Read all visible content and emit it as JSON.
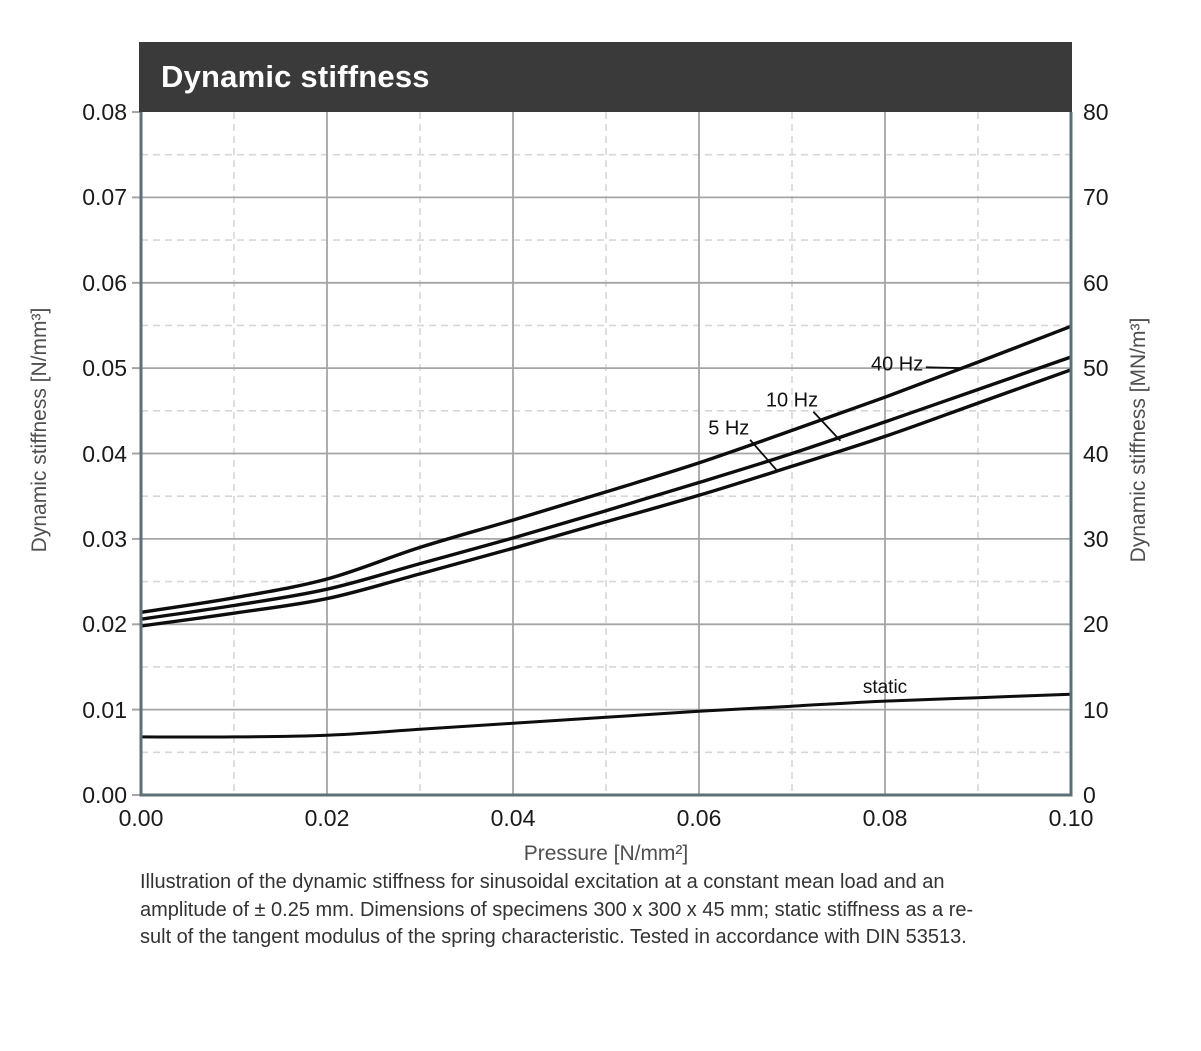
{
  "title": "Dynamic stiffness",
  "colors": {
    "title_bar_bg": "#3a3a3a",
    "title_text": "#ffffff",
    "spine": "#5c7177",
    "grid_major": "#a5a5a5",
    "grid_minor": "#d7d7d7",
    "curve": "#0d0d0d",
    "tick_label": "#1a1a1a",
    "axis_title": "#4f4f4f",
    "caption_text": "#333333"
  },
  "axes": {
    "x": {
      "title": "Pressure [N/mm²]",
      "tick_labels": [
        "0.00",
        "0.02",
        "0.04",
        "0.06",
        "0.08",
        "0.10"
      ],
      "range": [
        0,
        0.1
      ]
    },
    "y_left": {
      "title": "Dynamic stiffness  [N/mm³]",
      "tick_labels": [
        "0.00",
        "0.01",
        "0.02",
        "0.03",
        "0.04",
        "0.05",
        "0.06",
        "0.07",
        "0.08"
      ],
      "range": [
        0,
        0.08
      ]
    },
    "y_right": {
      "title": "Dynamic stiffness  [MN/m³]",
      "tick_labels": [
        "0",
        "10",
        "20",
        "30",
        "40",
        "50",
        "60",
        "70",
        "80"
      ],
      "range": [
        0,
        80
      ]
    }
  },
  "chart_data": {
    "type": "line",
    "title": "Dynamic stiffness",
    "xlabel": "Pressure [N/mm²]",
    "ylabel_left": "Dynamic stiffness [N/mm³]",
    "ylabel_right": "Dynamic stiffness [MN/m³]",
    "xlim": [
      0,
      0.1
    ],
    "ylim_left": [
      0,
      0.08
    ],
    "ylim_right": [
      0,
      80
    ],
    "grid": {
      "x_major": 0.02,
      "x_minor": 0.01,
      "y_major": 0.01,
      "y_minor": 0.005,
      "style": "major solid, minor dashed"
    },
    "legend": "inline curve labels with leader lines",
    "x": [
      0,
      0.01,
      0.02,
      0.03,
      0.04,
      0.05,
      0.06,
      0.07,
      0.08,
      0.09,
      0.1
    ],
    "series": [
      {
        "name": "40 Hz",
        "values": [
          0.0214,
          0.0231,
          0.0253,
          0.029,
          0.0322,
          0.0355,
          0.0389,
          0.0427,
          0.0466,
          0.0507,
          0.0549
        ]
      },
      {
        "name": "10 Hz",
        "values": [
          0.0206,
          0.0222,
          0.0241,
          0.0271,
          0.0301,
          0.0333,
          0.0366,
          0.04,
          0.0437,
          0.0475,
          0.0513
        ]
      },
      {
        "name": "5 Hz",
        "values": [
          0.0198,
          0.0213,
          0.023,
          0.0259,
          0.0289,
          0.032,
          0.0351,
          0.0385,
          0.042,
          0.0459,
          0.0498
        ]
      },
      {
        "name": "static",
        "values": [
          0.0068,
          0.0068,
          0.007,
          0.0077,
          0.0084,
          0.0091,
          0.0098,
          0.0104,
          0.011,
          0.0114,
          0.0118
        ]
      }
    ],
    "annotations": [
      {
        "text": "40 Hz",
        "x": 0.0813,
        "y": 0.0504,
        "leader": [
          [
            0.0844,
            0.0501
          ],
          [
            0.0884,
            0.05
          ]
        ]
      },
      {
        "text": "10 Hz",
        "x": 0.07,
        "y": 0.0461,
        "leader": [
          [
            0.0723,
            0.0449
          ],
          [
            0.0752,
            0.0415
          ]
        ]
      },
      {
        "text": "5 Hz",
        "x": 0.0632,
        "y": 0.0429,
        "leader": [
          [
            0.0655,
            0.0416
          ],
          [
            0.0683,
            0.0381
          ]
        ]
      },
      {
        "text": "static",
        "x": 0.08,
        "y": 0.0125,
        "leader": null
      }
    ]
  },
  "caption": {
    "lines": [
      "Illustration of the dynamic stiffness for sinusoidal excitation at a constant mean load and an",
      "amplitude of ± 0.25 mm.  Dimensions of specimens 300 x 300 x 45 mm; static stiffness as a re-",
      "sult of the tangent modulus of the spring characteristic. Tested in accordance with DIN 53513."
    ]
  }
}
